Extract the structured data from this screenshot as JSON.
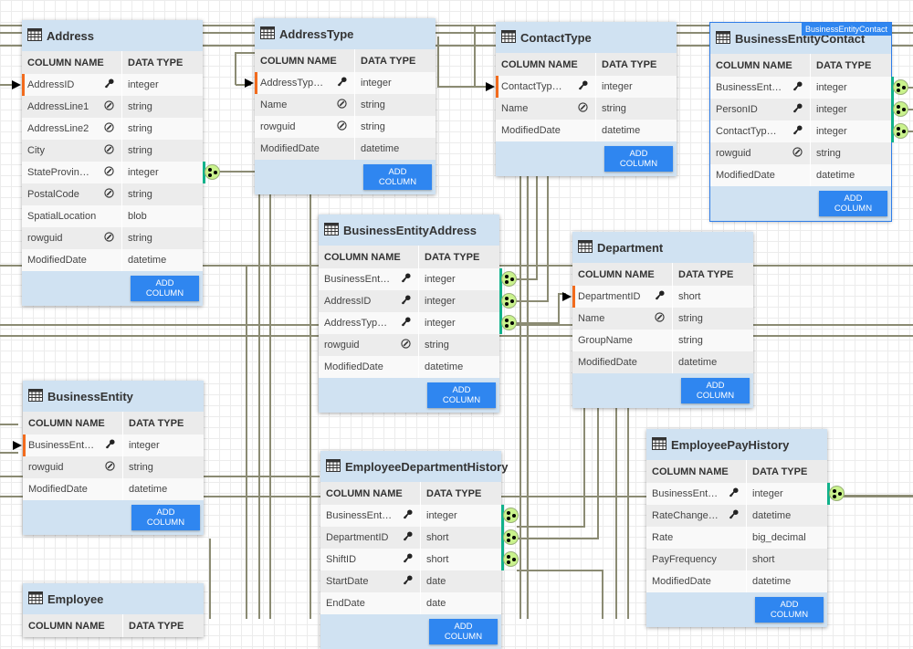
{
  "headers": {
    "column_name": "COLUMN NAME",
    "data_type": "DATA TYPE"
  },
  "add_column_label": "ADD COLUMN",
  "colors": {
    "accent": "#2f86f0",
    "pk_marker": "#f26b1d",
    "fk_marker": "#11b28b",
    "header_bg": "#d0e2f2",
    "link": "#8b8b73"
  },
  "selected_tag": "BusinessEntityContact",
  "tables": [
    {
      "name": "Address",
      "columns": [
        {
          "name": "AddressID",
          "type": "integer",
          "icon": "key",
          "pk": true
        },
        {
          "name": "AddressLine1",
          "type": "string",
          "icon": "compass"
        },
        {
          "name": "AddressLine2",
          "type": "string",
          "icon": "compass"
        },
        {
          "name": "City",
          "type": "string",
          "icon": "compass"
        },
        {
          "name": "StateProvin…",
          "type": "integer",
          "icon": "compass",
          "fk": true
        },
        {
          "name": "PostalCode",
          "type": "string",
          "icon": "compass"
        },
        {
          "name": "SpatialLocation",
          "type": "blob",
          "icon": ""
        },
        {
          "name": "rowguid",
          "type": "string",
          "icon": "compass"
        },
        {
          "name": "ModifiedDate",
          "type": "datetime",
          "icon": ""
        }
      ]
    },
    {
      "name": "AddressType",
      "columns": [
        {
          "name": "AddressTyp…",
          "type": "integer",
          "icon": "key",
          "pk": true
        },
        {
          "name": "Name",
          "type": "string",
          "icon": "compass"
        },
        {
          "name": "rowguid",
          "type": "string",
          "icon": "compass"
        },
        {
          "name": "ModifiedDate",
          "type": "datetime",
          "icon": ""
        }
      ]
    },
    {
      "name": "ContactType",
      "columns": [
        {
          "name": "ContactTyp…",
          "type": "integer",
          "icon": "key",
          "pk": true
        },
        {
          "name": "Name",
          "type": "string",
          "icon": "compass"
        },
        {
          "name": "ModifiedDate",
          "type": "datetime",
          "icon": ""
        }
      ]
    },
    {
      "name": "BusinessEntityContact",
      "selected": true,
      "columns": [
        {
          "name": "BusinessEnt…",
          "type": "integer",
          "icon": "key",
          "fk": true
        },
        {
          "name": "PersonID",
          "type": "integer",
          "icon": "key",
          "fk": true
        },
        {
          "name": "ContactTyp…",
          "type": "integer",
          "icon": "key",
          "fk": true
        },
        {
          "name": "rowguid",
          "type": "string",
          "icon": "compass"
        },
        {
          "name": "ModifiedDate",
          "type": "datetime",
          "icon": ""
        }
      ]
    },
    {
      "name": "BusinessEntityAddress",
      "columns": [
        {
          "name": "BusinessEnt…",
          "type": "integer",
          "icon": "key",
          "fk": true
        },
        {
          "name": "AddressID",
          "type": "integer",
          "icon": "key",
          "fk": true
        },
        {
          "name": "AddressTyp…",
          "type": "integer",
          "icon": "key",
          "fk": true
        },
        {
          "name": "rowguid",
          "type": "string",
          "icon": "compass"
        },
        {
          "name": "ModifiedDate",
          "type": "datetime",
          "icon": ""
        }
      ]
    },
    {
      "name": "Department",
      "columns": [
        {
          "name": "DepartmentID",
          "type": "short",
          "icon": "key",
          "pk": true
        },
        {
          "name": "Name",
          "type": "string",
          "icon": "compass"
        },
        {
          "name": "GroupName",
          "type": "string",
          "icon": ""
        },
        {
          "name": "ModifiedDate",
          "type": "datetime",
          "icon": ""
        }
      ]
    },
    {
      "name": "BusinessEntity",
      "columns": [
        {
          "name": "BusinessEnt…",
          "type": "integer",
          "icon": "key",
          "pk": true
        },
        {
          "name": "rowguid",
          "type": "string",
          "icon": "compass"
        },
        {
          "name": "ModifiedDate",
          "type": "datetime",
          "icon": ""
        }
      ]
    },
    {
      "name": "EmployeeDepartmentHistory",
      "columns": [
        {
          "name": "BusinessEnt…",
          "type": "integer",
          "icon": "key",
          "fk": true
        },
        {
          "name": "DepartmentID",
          "type": "short",
          "icon": "key",
          "fk": true
        },
        {
          "name": "ShiftID",
          "type": "short",
          "icon": "key",
          "fk": true
        },
        {
          "name": "StartDate",
          "type": "date",
          "icon": "key"
        },
        {
          "name": "EndDate",
          "type": "date",
          "icon": ""
        }
      ]
    },
    {
      "name": "EmployeePayHistory",
      "columns": [
        {
          "name": "BusinessEnt…",
          "type": "integer",
          "icon": "key",
          "fk": true
        },
        {
          "name": "RateChange…",
          "type": "datetime",
          "icon": "key"
        },
        {
          "name": "Rate",
          "type": "big_decimal",
          "icon": ""
        },
        {
          "name": "PayFrequency",
          "type": "short",
          "icon": ""
        },
        {
          "name": "ModifiedDate",
          "type": "datetime",
          "icon": ""
        }
      ]
    },
    {
      "name": "Employee",
      "columns": []
    }
  ]
}
